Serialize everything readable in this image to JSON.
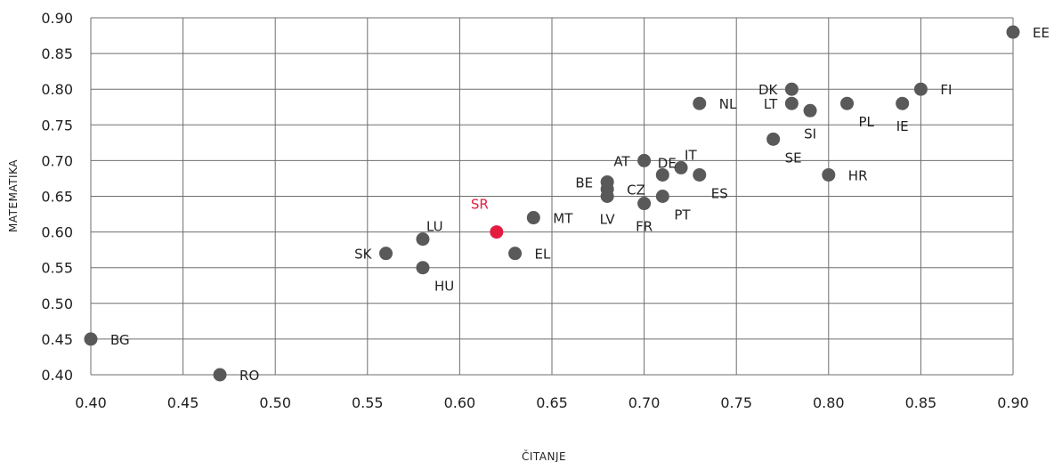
{
  "chart_data": {
    "type": "scatter",
    "title": "",
    "xlabel": "ČITANJE",
    "ylabel": "MATEMATIKA",
    "xlim": [
      0.4,
      0.9
    ],
    "ylim": [
      0.4,
      0.9
    ],
    "x_ticks": [
      "0.40",
      "0.45",
      "0.50",
      "0.55",
      "0.60",
      "0.65",
      "0.70",
      "0.75",
      "0.80",
      "0.85",
      "0.90"
    ],
    "y_ticks": [
      "0.40",
      "0.45",
      "0.50",
      "0.55",
      "0.60",
      "0.65",
      "0.70",
      "0.75",
      "0.80",
      "0.85",
      "0.90"
    ],
    "grid": true,
    "colors": {
      "default": "#595959",
      "highlight": "#e31b3f",
      "grid": "#6e6e6e",
      "text": "#1f1f1f"
    },
    "points": [
      {
        "label": "EE",
        "x": 0.9,
        "y": 0.88,
        "pos": "right"
      },
      {
        "label": "FI",
        "x": 0.85,
        "y": 0.8,
        "pos": "right"
      },
      {
        "label": "IE",
        "x": 0.84,
        "y": 0.78,
        "pos": "below"
      },
      {
        "label": "PL",
        "x": 0.81,
        "y": 0.78,
        "pos": "below-right"
      },
      {
        "label": "SI",
        "x": 0.79,
        "y": 0.77,
        "pos": "below"
      },
      {
        "label": "DK",
        "x": 0.78,
        "y": 0.8,
        "pos": "left"
      },
      {
        "label": "LT",
        "x": 0.78,
        "y": 0.78,
        "pos": "left"
      },
      {
        "label": "SE",
        "x": 0.77,
        "y": 0.73,
        "pos": "below-right"
      },
      {
        "label": "NL",
        "x": 0.73,
        "y": 0.78,
        "pos": "right"
      },
      {
        "label": "HR",
        "x": 0.8,
        "y": 0.68,
        "pos": "right"
      },
      {
        "label": "ES",
        "x": 0.73,
        "y": 0.68,
        "pos": "below-right"
      },
      {
        "label": "IT",
        "x": 0.72,
        "y": 0.69,
        "pos": "above-right"
      },
      {
        "label": "DE",
        "x": 0.71,
        "y": 0.68,
        "pos": "above"
      },
      {
        "label": "AT",
        "x": 0.7,
        "y": 0.7,
        "pos": "left"
      },
      {
        "label": "PT",
        "x": 0.71,
        "y": 0.65,
        "pos": "below-right"
      },
      {
        "label": "FR",
        "x": 0.7,
        "y": 0.64,
        "pos": "below"
      },
      {
        "label": "BE",
        "x": 0.68,
        "y": 0.67,
        "pos": "left"
      },
      {
        "label": "CZ",
        "x": 0.68,
        "y": 0.66,
        "pos": "right"
      },
      {
        "label": "LV",
        "x": 0.68,
        "y": 0.65,
        "pos": "below"
      },
      {
        "label": "MT",
        "x": 0.64,
        "y": 0.62,
        "pos": "right"
      },
      {
        "label": "SR",
        "x": 0.62,
        "y": 0.6,
        "pos": "above-left",
        "highlight": true
      },
      {
        "label": "EL",
        "x": 0.63,
        "y": 0.57,
        "pos": "right"
      },
      {
        "label": "LU",
        "x": 0.58,
        "y": 0.59,
        "pos": "above-right"
      },
      {
        "label": "HU",
        "x": 0.58,
        "y": 0.55,
        "pos": "below-right"
      },
      {
        "label": "SK",
        "x": 0.56,
        "y": 0.57,
        "pos": "left"
      },
      {
        "label": "BG",
        "x": 0.4,
        "y": 0.45,
        "pos": "right"
      },
      {
        "label": "RO",
        "x": 0.47,
        "y": 0.4,
        "pos": "right"
      }
    ]
  }
}
